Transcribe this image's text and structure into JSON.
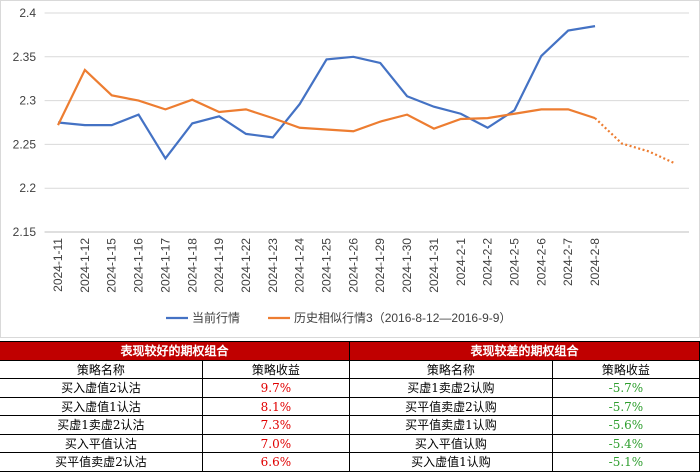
{
  "chart_data": {
    "type": "line",
    "categories": [
      "2024-1-11",
      "2024-1-12",
      "2024-1-15",
      "2024-1-16",
      "2024-1-17",
      "2024-1-18",
      "2024-1-19",
      "2024-1-22",
      "2024-1-23",
      "2024-1-24",
      "2024-1-25",
      "2024-1-26",
      "2024-1-29",
      "2024-1-30",
      "2024-1-31",
      "2024-2-1",
      "2024-2-2",
      "2024-2-5",
      "2024-2-6",
      "2024-2-7",
      "2024-2-8",
      null,
      null,
      null
    ],
    "series": [
      {
        "name": "当前行情",
        "color": "#4472c4",
        "values": [
          2.275,
          2.272,
          2.272,
          2.284,
          2.234,
          2.274,
          2.282,
          2.262,
          2.258,
          2.296,
          2.347,
          2.35,
          2.343,
          2.305,
          2.293,
          2.285,
          2.269,
          2.289,
          2.351,
          2.38,
          2.385,
          null,
          null,
          null
        ]
      },
      {
        "name": "历史相似行情3（2016-8-12—2016-9-9）",
        "color": "#ed7d31",
        "dashed_from_index": 20,
        "values": [
          2.272,
          2.335,
          2.306,
          2.3,
          2.29,
          2.301,
          2.287,
          2.29,
          2.28,
          2.269,
          2.267,
          2.265,
          2.276,
          2.284,
          2.268,
          2.279,
          2.28,
          2.285,
          2.29,
          2.29,
          2.28,
          2.251,
          2.242,
          2.228
        ]
      }
    ],
    "ylim": [
      2.15,
      2.4
    ],
    "yticks": [
      2.15,
      {
        "value": 2.2,
        "label": "2.2"
      },
      2.25,
      {
        "value": 2.3,
        "label": "2.3"
      },
      2.35,
      {
        "value": 2.4,
        "label": "2.4"
      }
    ],
    "grid": true,
    "legend": "bottom"
  },
  "table": {
    "groups": [
      {
        "title": "表现较好的期权组合",
        "headers": [
          "策略名称",
          "策略收益"
        ],
        "color": "#e00000",
        "rows": [
          [
            "买入虚值2认沽",
            "9.7%"
          ],
          [
            "买入虚值1认沽",
            "8.1%"
          ],
          [
            "买虚1卖虚2认沽",
            "7.3%"
          ],
          [
            "买入平值认沽",
            "7.0%"
          ],
          [
            "买平值卖虚2认沽",
            "6.6%"
          ]
        ]
      },
      {
        "title": "表现较差的期权组合",
        "headers": [
          "策略名称",
          "策略收益"
        ],
        "color": "#2e9e2e",
        "rows": [
          [
            "买虚1卖虚2认购",
            "-5.7%"
          ],
          [
            "买平值卖虚2认购",
            "-5.7%"
          ],
          [
            "买平值卖虚1认购",
            "-5.6%"
          ],
          [
            "买入平值认购",
            "-5.4%"
          ],
          [
            "买入虚值1认购",
            "-5.1%"
          ]
        ]
      }
    ]
  }
}
